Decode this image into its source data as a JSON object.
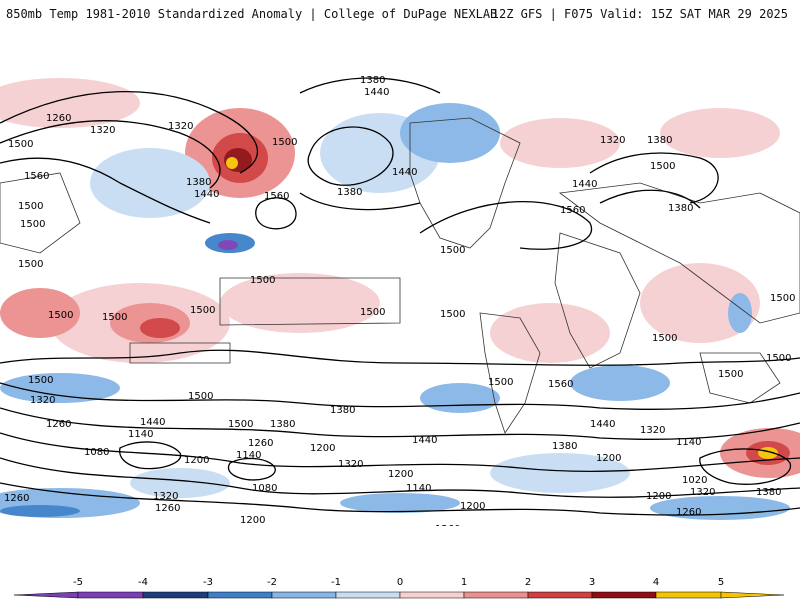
{
  "header": {
    "left": "850mb Temp 1981-2010 Standardized Anomaly | College of DuPage NEXLAB",
    "right": "12Z GFS | F075 Valid: 15Z SAT MAR 29 2025"
  },
  "colors": {
    "neg5": "#7b3fb5",
    "neg4": "#1f3d7a",
    "neg3": "#3d80c8",
    "neg2": "#86b6e6",
    "neg1": "#c8ddf3",
    "zero": "#ffffff",
    "pos1": "#f6cfd1",
    "pos2": "#eb8f8f",
    "pos3": "#cf4040",
    "pos4": "#8e0e12",
    "pos5": "#f5c400",
    "contour": "#000000"
  },
  "colorbar": {
    "ticks": [
      "-5",
      "-4",
      "-3",
      "-2",
      "-1",
      "0",
      "1",
      "2",
      "3",
      "4",
      "5"
    ]
  },
  "contour_labels": [
    "1380",
    "1440",
    "1260",
    "1320",
    "1320",
    "1500",
    "1560",
    "1500",
    "1500",
    "1380",
    "1440",
    "1560",
    "1380",
    "1440",
    "1500",
    "1560",
    "1320",
    "1380",
    "1500",
    "1440",
    "1380",
    "1500",
    "1500",
    "1500",
    "1500",
    "1500",
    "1500",
    "1500",
    "1500",
    "1500",
    "1500",
    "1500",
    "1500",
    "1500",
    "1560",
    "1440",
    "1500",
    "1380",
    "1320",
    "1260",
    "1140",
    "1080",
    "1200",
    "1380",
    "1260",
    "1140",
    "1200",
    "1080",
    "1320",
    "1260",
    "1440",
    "1320",
    "1200",
    "1140",
    "1200",
    "1260",
    "1380",
    "1440",
    "1320",
    "1200",
    "1140",
    "1020",
    "1320",
    "1380",
    "1260",
    "1200",
    "1260",
    "1200",
    "1500",
    "1500"
  ]
}
